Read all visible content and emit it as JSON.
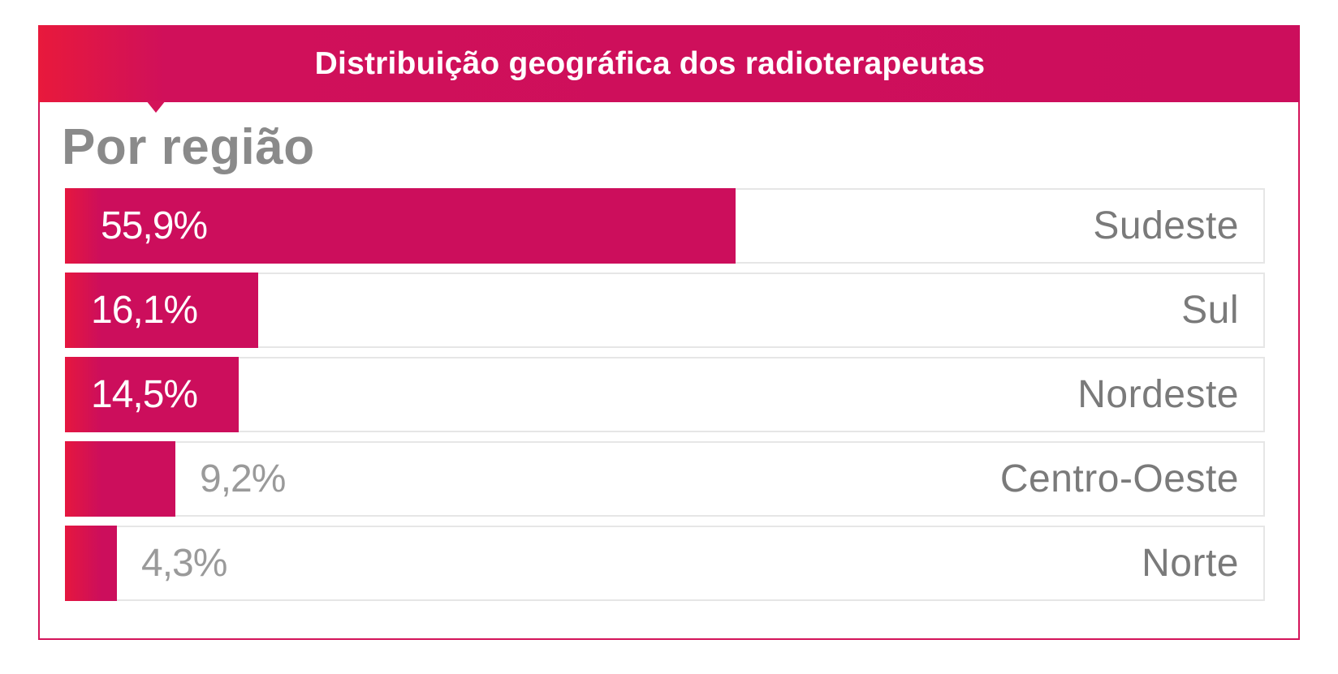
{
  "header": {
    "title": "Distribuição geográfica dos radioterapeutas",
    "accent_color": "#cc0e5c",
    "gradient_start_color": "#e8193c"
  },
  "chart_data": {
    "type": "bar",
    "orientation": "horizontal",
    "title": "Por região",
    "categories": [
      "Sudeste",
      "Sul",
      "Nordeste",
      "Centro-Oeste",
      "Norte"
    ],
    "values": [
      55.9,
      16.1,
      14.5,
      9.2,
      4.3
    ],
    "value_labels": [
      "55,9%",
      "16,1%",
      "14,5%",
      "9,2%",
      "4,3%"
    ],
    "unit": "%",
    "xlim": [
      0,
      100
    ],
    "bar_color": "#cc0e5c",
    "grid": false,
    "legend": "none"
  }
}
